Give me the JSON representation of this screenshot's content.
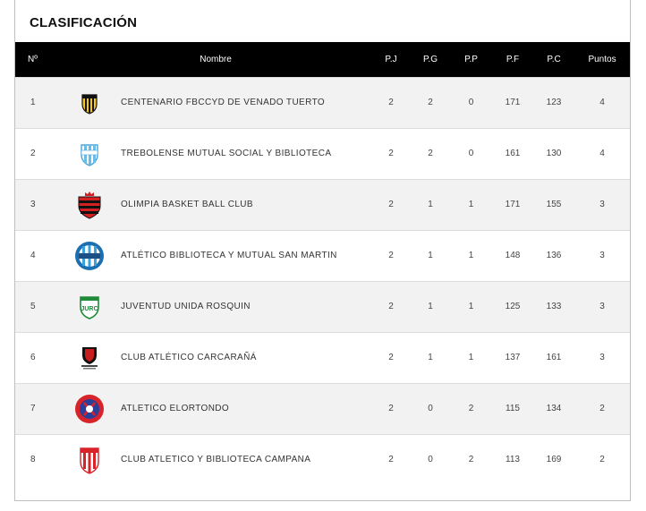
{
  "title": "CLASIFICACIÓN",
  "columns": {
    "pos": "Nº",
    "name": "Nombre",
    "pj": "P.J",
    "pg": "P.G",
    "pp": "P.P",
    "pf": "P.F",
    "pc": "P.C",
    "pts": "Puntos"
  },
  "rows": [
    {
      "pos": "1",
      "name": "CENTENARIO FBCCYD DE VENADO TUERTO",
      "pj": "2",
      "pg": "2",
      "pp": "0",
      "pf": "171",
      "pc": "123",
      "pts": "4",
      "logo": "crest-yellow-black-icon"
    },
    {
      "pos": "2",
      "name": "TREBOLENSE MUTUAL SOCIAL Y BIBLIOTECA",
      "pj": "2",
      "pg": "2",
      "pp": "0",
      "pf": "161",
      "pc": "130",
      "pts": "4",
      "logo": "crest-lightblue-white-icon"
    },
    {
      "pos": "3",
      "name": "OLIMPIA BASKET BALL CLUB",
      "pj": "2",
      "pg": "1",
      "pp": "1",
      "pf": "171",
      "pc": "155",
      "pts": "3",
      "logo": "crest-red-black-icon"
    },
    {
      "pos": "4",
      "name": "ATLÉTICO BIBLIOTECA Y MUTUAL SAN MARTIN",
      "pj": "2",
      "pg": "1",
      "pp": "1",
      "pf": "148",
      "pc": "136",
      "pts": "3",
      "logo": "crest-blue-white-round-icon"
    },
    {
      "pos": "5",
      "name": "JUVENTUD UNIDA ROSQUIN",
      "pj": "2",
      "pg": "1",
      "pp": "1",
      "pf": "125",
      "pc": "133",
      "pts": "3",
      "logo": "crest-green-white-icon"
    },
    {
      "pos": "6",
      "name": "CLUB ATLÉTICO CARCARAÑÁ",
      "pj": "2",
      "pg": "1",
      "pp": "1",
      "pf": "137",
      "pc": "161",
      "pts": "3",
      "logo": "crest-red-black-small-icon"
    },
    {
      "pos": "7",
      "name": "ATLETICO ELORTONDO",
      "pj": "2",
      "pg": "0",
      "pp": "2",
      "pf": "115",
      "pc": "134",
      "pts": "2",
      "logo": "crest-red-blue-round-icon"
    },
    {
      "pos": "8",
      "name": "CLUB ATLETICO Y BIBLIOTECA CAMPANA",
      "pj": "2",
      "pg": "0",
      "pp": "2",
      "pf": "113",
      "pc": "169",
      "pts": "2",
      "logo": "crest-red-white-stripes-icon"
    }
  ]
}
